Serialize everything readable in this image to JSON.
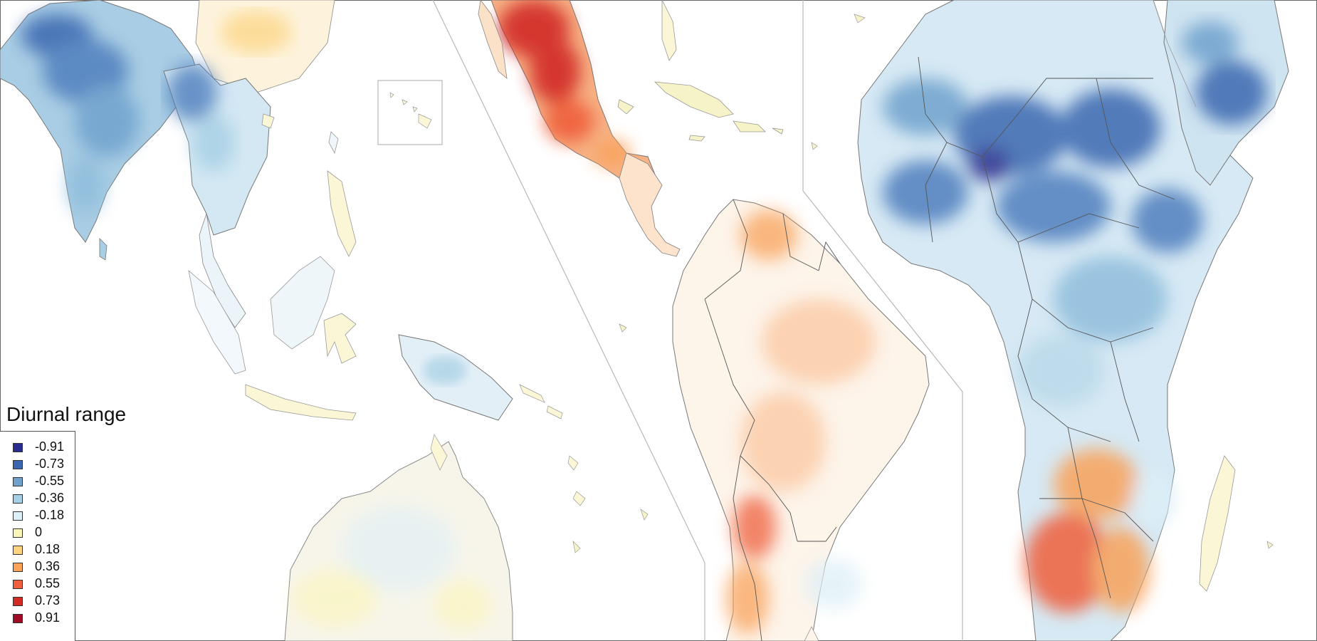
{
  "legend": {
    "title": "Diurnal range",
    "items": [
      {
        "label": "-0.91",
        "color": "#2b2d8e"
      },
      {
        "label": "-0.73",
        "color": "#3a68b0"
      },
      {
        "label": "-0.55",
        "color": "#6fa2cd"
      },
      {
        "label": "-0.36",
        "color": "#a5cfe4"
      },
      {
        "label": "-0.18",
        "color": "#ddeff7"
      },
      {
        "label": "0",
        "color": "#fbf5b7"
      },
      {
        "label": "0.18",
        "color": "#fdd37e"
      },
      {
        "label": "0.36",
        "color": "#f9a25a"
      },
      {
        "label": "0.55",
        "color": "#ef5f3b"
      },
      {
        "label": "0.73",
        "color": "#d22b26"
      },
      {
        "label": "0.91",
        "color": "#a10b26"
      }
    ]
  },
  "panels": [
    {
      "name": "south-asia-oceania"
    },
    {
      "name": "americas"
    },
    {
      "name": "africa"
    }
  ]
}
